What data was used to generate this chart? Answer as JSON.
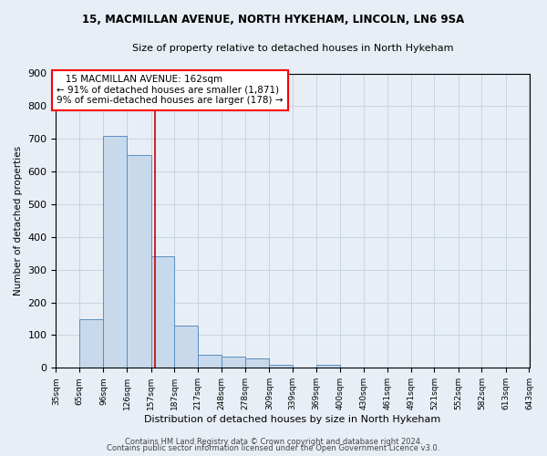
{
  "title1": "15, MACMILLAN AVENUE, NORTH HYKEHAM, LINCOLN, LN6 9SA",
  "title2": "Size of property relative to detached houses in North Hykeham",
  "xlabel": "Distribution of detached houses by size in North Hykeham",
  "ylabel": "Number of detached properties",
  "bar_left_edges": [
    35,
    65,
    96,
    126,
    157,
    187,
    217,
    248,
    278,
    309,
    339,
    369,
    400,
    430,
    461,
    491,
    521,
    552,
    582,
    613
  ],
  "bar_widths": [
    30,
    31,
    30,
    31,
    30,
    30,
    31,
    30,
    31,
    30,
    30,
    31,
    30,
    31,
    30,
    30,
    31,
    30,
    31,
    30
  ],
  "bar_heights": [
    0,
    150,
    710,
    650,
    340,
    130,
    40,
    35,
    30,
    10,
    0,
    10,
    0,
    0,
    0,
    0,
    0,
    0,
    0,
    0
  ],
  "bar_color": "#c8d9eb",
  "bar_edge_color": "#5a8fc0",
  "x_tick_labels": [
    "35sqm",
    "65sqm",
    "96sqm",
    "126sqm",
    "157sqm",
    "187sqm",
    "217sqm",
    "248sqm",
    "278sqm",
    "309sqm",
    "339sqm",
    "369sqm",
    "400sqm",
    "430sqm",
    "461sqm",
    "491sqm",
    "521sqm",
    "552sqm",
    "582sqm",
    "613sqm",
    "643sqm"
  ],
  "x_tick_positions": [
    35,
    65,
    96,
    126,
    157,
    187,
    217,
    248,
    278,
    309,
    339,
    369,
    400,
    430,
    461,
    491,
    521,
    552,
    582,
    613,
    643
  ],
  "ylim": [
    0,
    900
  ],
  "xlim": [
    35,
    643
  ],
  "red_line_x": 162,
  "annotation_line1": "   15 MACMILLAN AVENUE: 162sqm",
  "annotation_line2": "← 91% of detached houses are smaller (1,871)",
  "annotation_line3": "9% of semi-detached houses are larger (178) →",
  "grid_color": "#c8d4e3",
  "plot_bg_color": "#e8eef5",
  "fig_bg_color": "#e8eef5",
  "footer1": "Contains HM Land Registry data © Crown copyright and database right 2024.",
  "footer2": "Contains public sector information licensed under the Open Government Licence v3.0."
}
